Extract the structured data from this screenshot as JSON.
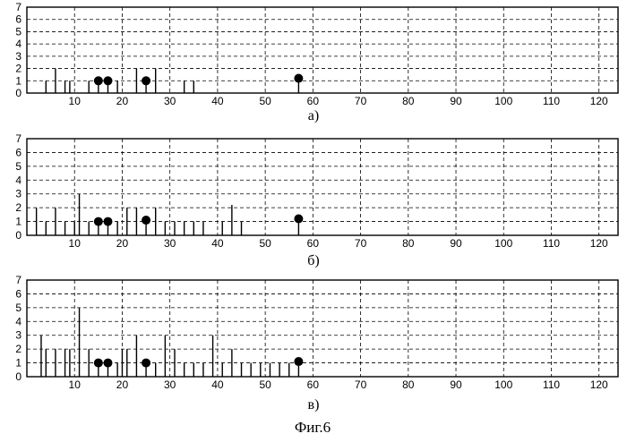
{
  "figure_caption": "Фиг.6",
  "chart_data": [
    {
      "type": "stem",
      "label": "а)",
      "xlim": [
        0,
        124
      ],
      "ylim": [
        0,
        7
      ],
      "xticks": [
        10,
        20,
        30,
        40,
        50,
        60,
        70,
        80,
        90,
        100,
        110,
        120
      ],
      "yticks": [
        0,
        1,
        2,
        3,
        4,
        5,
        6,
        7
      ],
      "grid": true,
      "stems": [
        {
          "x": 4,
          "y": 1
        },
        {
          "x": 6,
          "y": 2
        },
        {
          "x": 8,
          "y": 1
        },
        {
          "x": 9,
          "y": 1
        },
        {
          "x": 13,
          "y": 1
        },
        {
          "x": 19,
          "y": 1
        },
        {
          "x": 23,
          "y": 2
        },
        {
          "x": 27,
          "y": 2
        },
        {
          "x": 33,
          "y": 1
        },
        {
          "x": 35,
          "y": 1
        }
      ],
      "markers": [
        {
          "x": 15,
          "y": 1
        },
        {
          "x": 17,
          "y": 1
        },
        {
          "x": 25,
          "y": 1
        },
        {
          "x": 57,
          "y": 1.2
        }
      ]
    },
    {
      "type": "stem",
      "label": "б)",
      "xlim": [
        0,
        124
      ],
      "ylim": [
        0,
        7
      ],
      "xticks": [
        10,
        20,
        30,
        40,
        50,
        60,
        70,
        80,
        90,
        100,
        110,
        120
      ],
      "yticks": [
        0,
        1,
        2,
        3,
        4,
        5,
        6,
        7
      ],
      "grid": true,
      "stems": [
        {
          "x": 2,
          "y": 2
        },
        {
          "x": 4,
          "y": 1
        },
        {
          "x": 6,
          "y": 2
        },
        {
          "x": 8,
          "y": 1
        },
        {
          "x": 10,
          "y": 1
        },
        {
          "x": 11,
          "y": 3
        },
        {
          "x": 13,
          "y": 1
        },
        {
          "x": 19,
          "y": 1
        },
        {
          "x": 21,
          "y": 2
        },
        {
          "x": 23,
          "y": 2
        },
        {
          "x": 27,
          "y": 2
        },
        {
          "x": 29,
          "y": 1
        },
        {
          "x": 31,
          "y": 1
        },
        {
          "x": 33,
          "y": 1
        },
        {
          "x": 35,
          "y": 1
        },
        {
          "x": 37,
          "y": 1
        },
        {
          "x": 41,
          "y": 1
        },
        {
          "x": 43,
          "y": 2.2
        },
        {
          "x": 45,
          "y": 1
        }
      ],
      "markers": [
        {
          "x": 15,
          "y": 1
        },
        {
          "x": 17,
          "y": 1
        },
        {
          "x": 25,
          "y": 1.1
        },
        {
          "x": 57,
          "y": 1.2
        }
      ]
    },
    {
      "type": "stem",
      "label": "в)",
      "xlim": [
        0,
        124
      ],
      "ylim": [
        0,
        7
      ],
      "xticks": [
        10,
        20,
        30,
        40,
        50,
        60,
        70,
        80,
        90,
        100,
        110,
        120
      ],
      "yticks": [
        0,
        1,
        2,
        3,
        4,
        5,
        6,
        7
      ],
      "grid": true,
      "stems": [
        {
          "x": 3,
          "y": 3
        },
        {
          "x": 4,
          "y": 2
        },
        {
          "x": 6,
          "y": 2
        },
        {
          "x": 8,
          "y": 2
        },
        {
          "x": 9,
          "y": 2
        },
        {
          "x": 11,
          "y": 5
        },
        {
          "x": 13,
          "y": 2
        },
        {
          "x": 19,
          "y": 1
        },
        {
          "x": 20,
          "y": 2
        },
        {
          "x": 21,
          "y": 2
        },
        {
          "x": 23,
          "y": 3
        },
        {
          "x": 27,
          "y": 1
        },
        {
          "x": 29,
          "y": 3
        },
        {
          "x": 31,
          "y": 2
        },
        {
          "x": 33,
          "y": 1
        },
        {
          "x": 35,
          "y": 1
        },
        {
          "x": 37,
          "y": 1
        },
        {
          "x": 39,
          "y": 3
        },
        {
          "x": 41,
          "y": 1
        },
        {
          "x": 43,
          "y": 2
        },
        {
          "x": 45,
          "y": 1
        },
        {
          "x": 47,
          "y": 1
        },
        {
          "x": 49,
          "y": 1
        },
        {
          "x": 51,
          "y": 1
        },
        {
          "x": 53,
          "y": 1
        },
        {
          "x": 55,
          "y": 1
        }
      ],
      "markers": [
        {
          "x": 15,
          "y": 1
        },
        {
          "x": 17,
          "y": 1
        },
        {
          "x": 25,
          "y": 1
        },
        {
          "x": 57,
          "y": 1.1
        }
      ]
    }
  ]
}
